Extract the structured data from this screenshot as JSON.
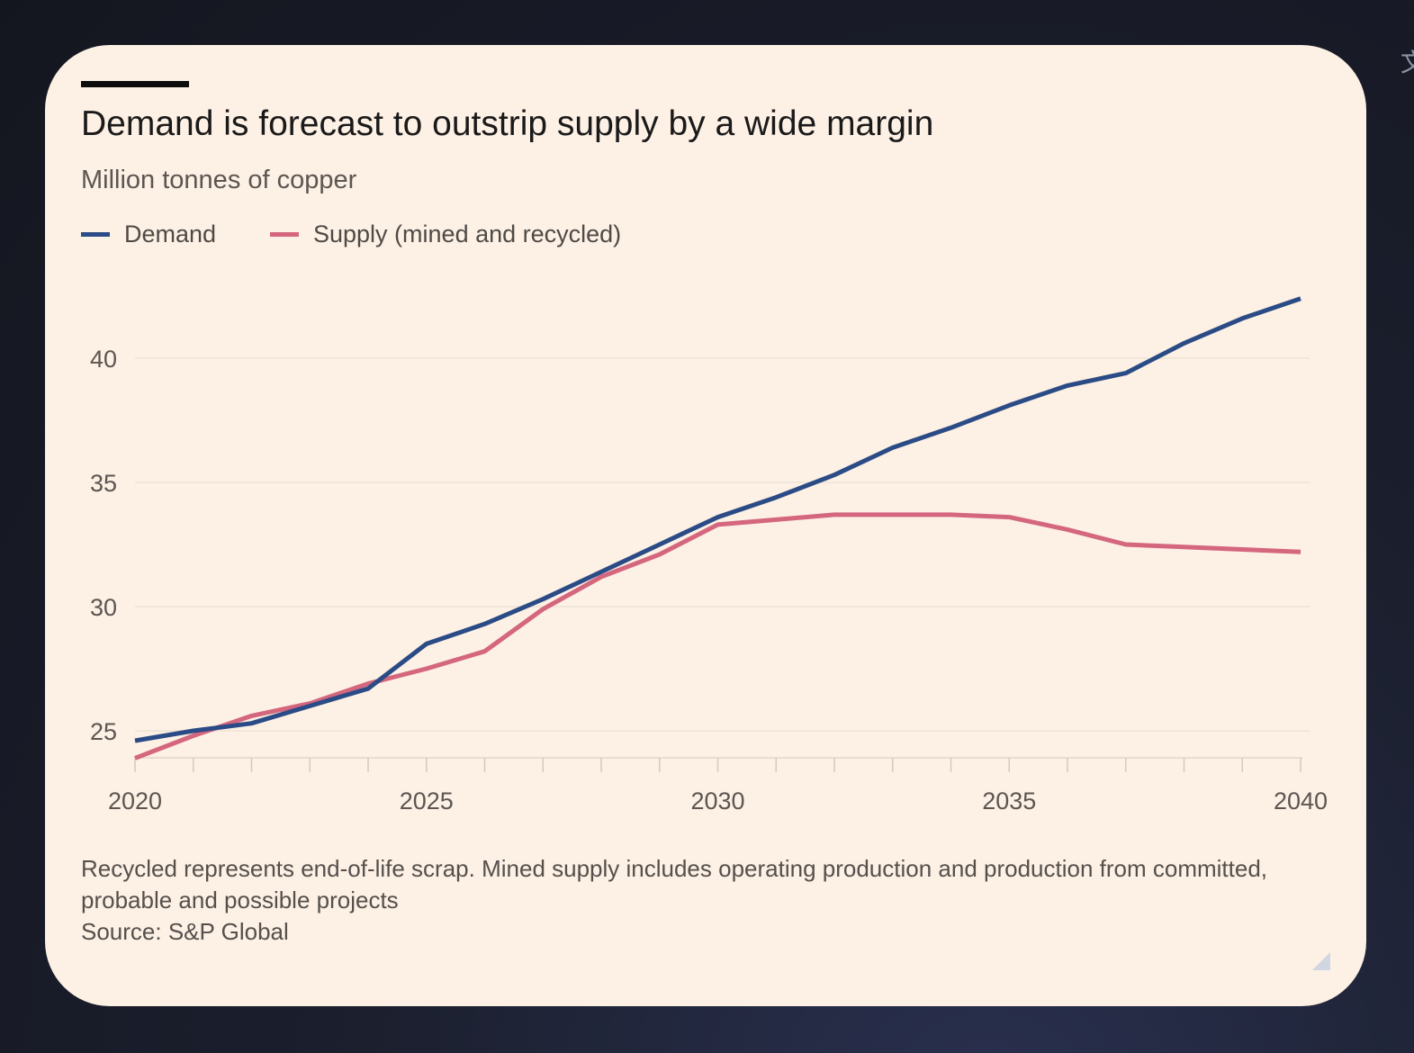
{
  "figure": {
    "title": "Demand is forecast to outstrip supply by a wide margin",
    "subtitle": "Million tonnes of copper",
    "footnote": "Recycled represents end-of-life scrap. Mined supply includes operating production and production from committed, probable and possible projects",
    "source": "Source: S&P Global",
    "side_glyph": "文"
  },
  "chart_data": {
    "type": "line",
    "title": "Demand is forecast to outstrip supply by a wide margin",
    "ylabel": "Million tonnes of copper",
    "xlabel": "",
    "x": [
      2020,
      2021,
      2022,
      2023,
      2024,
      2025,
      2026,
      2027,
      2028,
      2029,
      2030,
      2031,
      2032,
      2033,
      2034,
      2035,
      2036,
      2037,
      2038,
      2039,
      2040
    ],
    "series": [
      {
        "name": "Demand",
        "color": "#2a4b86",
        "values": [
          24.6,
          25.0,
          25.3,
          26.0,
          26.7,
          28.5,
          29.3,
          30.3,
          31.4,
          32.5,
          33.6,
          34.4,
          35.3,
          36.4,
          37.2,
          38.1,
          38.9,
          39.4,
          40.6,
          41.6,
          42.4
        ]
      },
      {
        "name": "Supply (mined and recycled)",
        "color": "#d4667e",
        "values": [
          23.9,
          24.8,
          25.6,
          26.1,
          26.9,
          27.5,
          28.2,
          29.9,
          31.2,
          32.1,
          33.3,
          33.5,
          33.7,
          33.7,
          33.7,
          33.6,
          33.1,
          32.5,
          32.4,
          32.3,
          32.2
        ]
      }
    ],
    "ylim": [
      23.8,
      43.5
    ],
    "yticks": [
      25,
      30,
      35,
      40
    ],
    "xticks": [
      2020,
      2025,
      2030,
      2035,
      2040
    ],
    "grid": true,
    "legend_position": "top-left"
  }
}
